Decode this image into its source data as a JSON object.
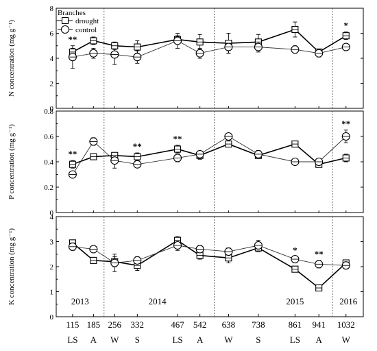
{
  "chart_data": {
    "type": "line",
    "x_categories": [
      "115",
      "185",
      "256",
      "332",
      "467",
      "542",
      "638",
      "738",
      "861",
      "941",
      "1032"
    ],
    "x_groups": [
      "LS",
      "A",
      "W",
      "S",
      "LS",
      "A",
      "W",
      "S",
      "LS",
      "A",
      "W"
    ],
    "years": [
      "2013",
      "2014",
      "2015",
      "2016"
    ],
    "legend": {
      "title": "Branches",
      "entries": [
        {
          "name": "drought",
          "marker": "square"
        },
        {
          "name": "control",
          "marker": "circle"
        }
      ],
      "placement": "top-left"
    },
    "panels": [
      {
        "ylabel": "N concentration (mg g⁻¹)",
        "ylim": [
          0,
          8
        ],
        "yticks": [
          "0",
          "2",
          "4",
          "6",
          "8"
        ],
        "series": [
          {
            "name": "drought",
            "values": [
              4.5,
              5.4,
              5.0,
              4.9,
              5.5,
              5.3,
              5.2,
              5.3,
              6.3,
              4.5,
              5.8
            ],
            "errors": [
              0.3,
              0.3,
              0.3,
              0.5,
              0.3,
              0.6,
              0.8,
              0.6,
              0.6,
              0.2,
              0.3
            ]
          },
          {
            "name": "control",
            "values": [
              4.1,
              4.4,
              4.3,
              4.1,
              5.4,
              4.4,
              4.9,
              4.9,
              4.7,
              4.4,
              4.9
            ],
            "errors": [
              0.9,
              0.4,
              0.8,
              0.5,
              0.6,
              0.4,
              0.5,
              0.4,
              0.3,
              0.3,
              0.2
            ]
          }
        ],
        "annotations": [
          {
            "category": "115",
            "text": "**"
          },
          {
            "category": "1032",
            "text": "*"
          }
        ]
      },
      {
        "ylabel": "P concentration (mg g⁻¹)",
        "ylim": [
          0,
          0.8
        ],
        "yticks": [
          "0",
          "0.2",
          "0.4",
          "0.6",
          "0.8"
        ],
        "series": [
          {
            "name": "drought",
            "values": [
              0.38,
              0.44,
              0.45,
              0.44,
              0.5,
              0.45,
              0.54,
              0.45,
              0.54,
              0.38,
              0.43
            ],
            "errors": [
              0.03,
              0.02,
              0.02,
              0.03,
              0.03,
              0.03,
              0.02,
              0.02,
              0.02,
              0.02,
              0.03
            ]
          },
          {
            "name": "control",
            "values": [
              0.3,
              0.56,
              0.41,
              0.38,
              0.43,
              0.46,
              0.6,
              0.46,
              0.4,
              0.4,
              0.6
            ],
            "errors": [
              0.02,
              0.03,
              0.06,
              0.02,
              0.03,
              0.02,
              0.02,
              0.03,
              0.02,
              0.02,
              0.05
            ]
          }
        ],
        "annotations": [
          {
            "category": "115",
            "text": "**"
          },
          {
            "category": "332",
            "text": "**"
          },
          {
            "category": "467",
            "text": "**"
          },
          {
            "category": "1032",
            "text": "**"
          }
        ]
      },
      {
        "ylabel": "K concentration (mg g⁻¹)",
        "ylim": [
          0,
          4
        ],
        "yticks": [
          "0",
          "1",
          "2",
          "3",
          "4"
        ],
        "series": [
          {
            "name": "drought",
            "values": [
              2.95,
              2.25,
              2.2,
              2.05,
              3.05,
              2.45,
              2.35,
              2.75,
              1.9,
              1.15,
              2.15
            ],
            "errors": [
              0.1,
              0.1,
              0.2,
              0.2,
              0.15,
              0.15,
              0.2,
              0.15,
              0.1,
              0.1,
              0.1
            ]
          },
          {
            "name": "control",
            "values": [
              2.8,
              2.7,
              2.15,
              2.25,
              2.85,
              2.7,
              2.6,
              2.85,
              2.3,
              2.1,
              2.05
            ],
            "errors": [
              0.15,
              0.1,
              0.35,
              0.15,
              0.2,
              0.15,
              0.15,
              0.2,
              0.1,
              0.15,
              0.1
            ]
          }
        ],
        "annotations": [
          {
            "category": "861",
            "text": "*"
          },
          {
            "category": "941",
            "text": "**"
          }
        ]
      }
    ]
  }
}
